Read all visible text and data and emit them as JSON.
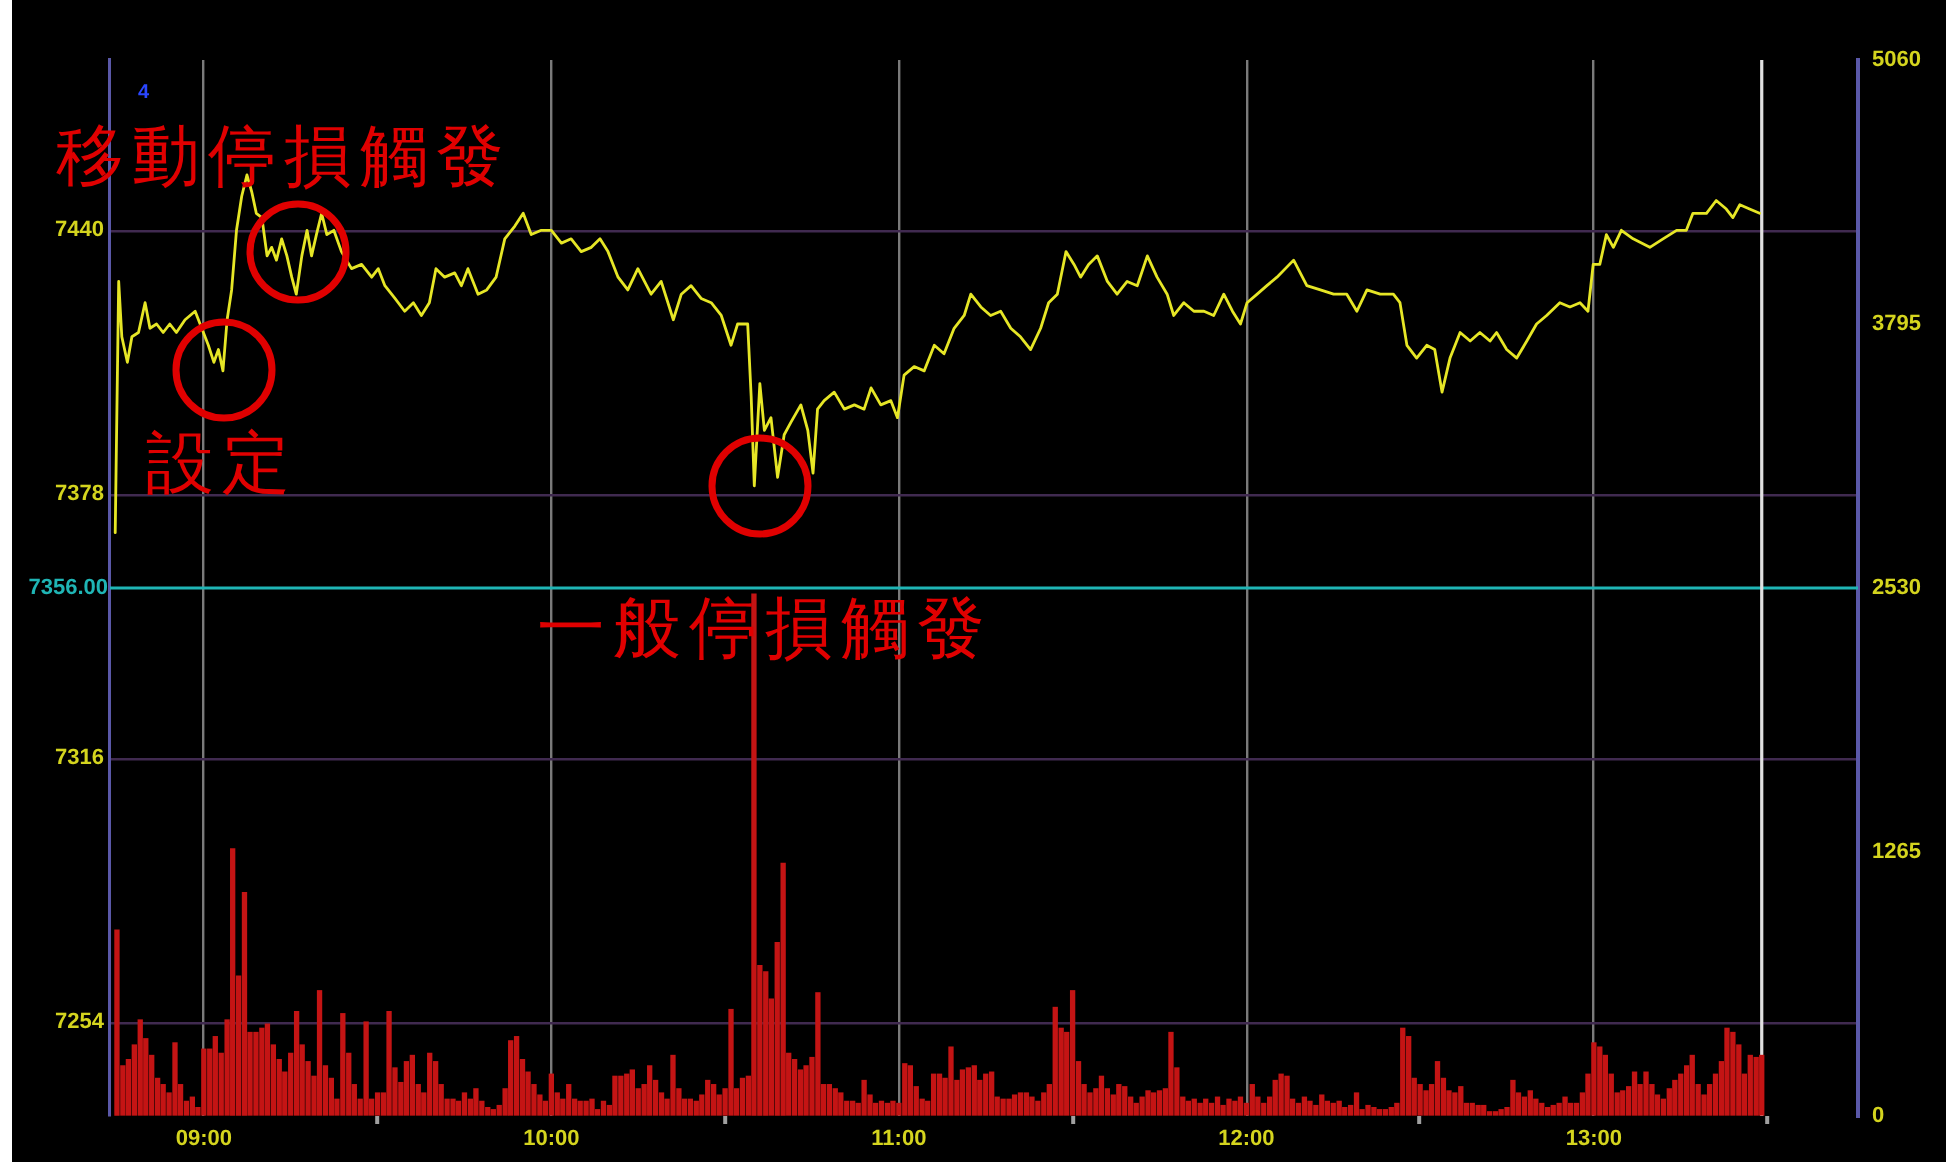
{
  "chart_data": {
    "type": "line",
    "xlim": [
      8.73,
      13.76
    ],
    "xticks": [
      {
        "value": 9,
        "label": "09:00"
      },
      {
        "value": 9.5,
        "label": null
      },
      {
        "value": 10,
        "label": "10:00"
      },
      {
        "value": 10.5,
        "label": null
      },
      {
        "value": 11,
        "label": "11:00"
      },
      {
        "value": 11.5,
        "label": null
      },
      {
        "value": 12,
        "label": "12:00"
      },
      {
        "value": 12.5,
        "label": null
      },
      {
        "value": 13,
        "label": "13:00"
      },
      {
        "value": 13.5,
        "label": null
      }
    ],
    "ylim": [
      7232,
      7480
    ],
    "yticks": [
      7254,
      7316,
      7378,
      7440
    ],
    "y2lim": [
      0,
      5060
    ],
    "y2ticks": [
      0,
      1265,
      2530,
      3795,
      5060
    ],
    "grid": true,
    "legend": false,
    "marker": "none",
    "line_style": "solid",
    "ref_lines": [
      {
        "axis": "y",
        "value": 7356,
        "label": "7356.00",
        "color": "#1fb5b5"
      },
      {
        "axis": "x",
        "value": 13.483,
        "color": "#e0e0e0"
      }
    ],
    "annotations": [
      "4",
      {
        "text": "移動停損觸發",
        "x": 9.27,
        "y": 7435
      },
      {
        "text": "設定",
        "x": 9.057,
        "y": 7407
      },
      {
        "text": "一般停損觸發",
        "x": 10.598,
        "y": 7380
      }
    ],
    "series": [
      {
        "color": "#e6e626",
        "x": [
          8.745,
          8.755,
          8.764,
          8.78,
          8.793,
          8.812,
          8.831,
          8.845,
          8.864,
          8.883,
          8.902,
          8.921,
          8.946,
          8.975,
          8.994,
          9.013,
          9.029,
          9.042,
          9.055,
          9.067,
          9.08,
          9.094,
          9.109,
          9.124,
          9.138,
          9.151,
          9.167,
          9.182,
          9.195,
          9.209,
          9.224,
          9.239,
          9.253,
          9.266,
          9.282,
          9.297,
          9.31,
          9.324,
          9.339,
          9.354,
          9.374,
          9.396,
          9.425,
          9.454,
          9.483,
          9.502,
          9.521,
          9.55,
          9.578,
          9.603,
          9.626,
          9.649,
          9.668,
          9.693,
          9.722,
          9.741,
          9.76,
          9.789,
          9.814,
          9.841,
          9.866,
          9.895,
          9.919,
          9.942,
          9.971,
          10,
          10.029,
          10.057,
          10.086,
          10.115,
          10.14,
          10.163,
          10.192,
          10.22,
          10.249,
          10.287,
          10.316,
          10.351,
          10.374,
          10.402,
          10.431,
          10.46,
          10.489,
          10.517,
          10.536,
          10.565,
          10.575,
          10.584,
          10.6,
          10.613,
          10.632,
          10.651,
          10.67,
          10.69,
          10.718,
          10.738,
          10.753,
          10.766,
          10.785,
          10.814,
          10.843,
          10.872,
          10.9,
          10.92,
          10.948,
          10.977,
          10.996,
          11.015,
          11.044,
          11.073,
          11.102,
          11.13,
          11.159,
          11.188,
          11.207,
          11.236,
          11.264,
          11.293,
          11.322,
          11.35,
          11.379,
          11.408,
          11.431,
          11.456,
          11.481,
          11.504,
          11.523,
          11.546,
          11.571,
          11.6,
          11.628,
          11.657,
          11.686,
          11.715,
          11.743,
          11.772,
          11.791,
          11.82,
          11.849,
          11.878,
          11.906,
          11.935,
          11.96,
          11.983,
          12.002,
          12.031,
          12.059,
          12.088,
          12.136,
          12.174,
          12.213,
          12.251,
          12.289,
          12.318,
          12.347,
          12.385,
          12.423,
          12.442,
          12.462,
          12.49,
          12.519,
          12.542,
          12.563,
          12.586,
          12.615,
          12.644,
          12.672,
          12.701,
          12.72,
          12.749,
          12.778,
          12.807,
          12.835,
          12.864,
          12.902,
          12.931,
          12.96,
          12.983,
          12.998,
          13.017,
          13.036,
          13.056,
          13.079,
          13.113,
          13.161,
          13.199,
          13.238,
          13.266,
          13.285,
          13.324,
          13.352,
          13.381,
          13.4,
          13.42,
          13.448,
          13.477
        ],
        "values": [
          7369,
          7428,
          7415,
          7409,
          7415,
          7416,
          7423,
          7417,
          7418,
          7416,
          7418,
          7416,
          7419,
          7421,
          7417,
          7413,
          7409,
          7412,
          7407,
          7419,
          7426,
          7440,
          7448,
          7453,
          7449,
          7444,
          7443,
          7434,
          7436,
          7433,
          7438,
          7434,
          7429,
          7425,
          7434,
          7440,
          7434,
          7439,
          7444,
          7439,
          7440,
          7435,
          7431,
          7432,
          7429,
          7431,
          7427,
          7424,
          7421,
          7423,
          7420,
          7423,
          7431,
          7429,
          7430,
          7427,
          7431,
          7425,
          7426,
          7429,
          7438,
          7441,
          7444,
          7439,
          7440,
          7440,
          7437,
          7438,
          7435,
          7436,
          7438,
          7435,
          7429,
          7426,
          7431,
          7425,
          7428,
          7419,
          7425,
          7427,
          7424,
          7423,
          7420,
          7413,
          7418,
          7418,
          7401,
          7380,
          7404,
          7393,
          7396,
          7382,
          7392,
          7395,
          7399,
          7393,
          7383,
          7398,
          7400,
          7402,
          7398,
          7399,
          7398,
          7403,
          7399,
          7400,
          7396,
          7406,
          7408,
          7407,
          7413,
          7411,
          7417,
          7420,
          7425,
          7422,
          7420,
          7421,
          7417,
          7415,
          7412,
          7417,
          7423,
          7425,
          7435,
          7432,
          7429,
          7432,
          7434,
          7428,
          7425,
          7428,
          7427,
          7434,
          7429,
          7425,
          7420,
          7423,
          7421,
          7421,
          7420,
          7425,
          7421,
          7418,
          7423,
          7425,
          7427,
          7429,
          7433,
          7427,
          7426,
          7425,
          7425,
          7421,
          7426,
          7425,
          7425,
          7423,
          7413,
          7410,
          7413,
          7412,
          7402,
          7410,
          7416,
          7414,
          7416,
          7414,
          7416,
          7412,
          7410,
          7414,
          7418,
          7420,
          7423,
          7422,
          7423,
          7421,
          7432,
          7432,
          7439,
          7436,
          7440,
          7438,
          7436,
          7438,
          7440,
          7440,
          7444,
          7444,
          7447,
          7445,
          7443,
          7446,
          7445,
          7444
        ]
      },
      {
        "type": "bar",
        "axis": "y2",
        "color": "#c41414",
        "x": [
          8.75,
          8.767,
          8.783,
          8.8,
          8.817,
          8.833,
          8.85,
          8.867,
          8.883,
          8.9,
          8.917,
          8.933,
          8.95,
          8.967,
          8.983,
          9,
          9.017,
          9.033,
          9.05,
          9.067,
          9.083,
          9.1,
          9.117,
          9.133,
          9.15,
          9.167,
          9.183,
          9.2,
          9.217,
          9.233,
          9.25,
          9.267,
          9.283,
          9.3,
          9.317,
          9.333,
          9.35,
          9.367,
          9.383,
          9.4,
          9.417,
          9.433,
          9.45,
          9.467,
          9.483,
          9.5,
          9.517,
          9.533,
          9.55,
          9.567,
          9.583,
          9.6,
          9.617,
          9.633,
          9.65,
          9.667,
          9.683,
          9.7,
          9.717,
          9.733,
          9.75,
          9.767,
          9.783,
          9.8,
          9.817,
          9.833,
          9.85,
          9.867,
          9.883,
          9.9,
          9.917,
          9.933,
          9.95,
          9.967,
          9.983,
          10,
          10.017,
          10.033,
          10.05,
          10.067,
          10.083,
          10.1,
          10.117,
          10.133,
          10.15,
          10.167,
          10.183,
          10.2,
          10.217,
          10.233,
          10.25,
          10.267,
          10.283,
          10.3,
          10.317,
          10.333,
          10.35,
          10.367,
          10.383,
          10.4,
          10.417,
          10.433,
          10.45,
          10.467,
          10.483,
          10.5,
          10.517,
          10.533,
          10.55,
          10.567,
          10.583,
          10.6,
          10.617,
          10.633,
          10.65,
          10.667,
          10.683,
          10.7,
          10.717,
          10.733,
          10.75,
          10.767,
          10.783,
          10.8,
          10.817,
          10.833,
          10.85,
          10.867,
          10.883,
          10.9,
          10.917,
          10.933,
          10.95,
          10.967,
          10.983,
          11,
          11.017,
          11.033,
          11.05,
          11.067,
          11.083,
          11.1,
          11.117,
          11.133,
          11.15,
          11.167,
          11.183,
          11.2,
          11.217,
          11.233,
          11.25,
          11.267,
          11.283,
          11.3,
          11.317,
          11.333,
          11.35,
          11.367,
          11.383,
          11.4,
          11.417,
          11.433,
          11.45,
          11.467,
          11.483,
          11.5,
          11.517,
          11.533,
          11.55,
          11.567,
          11.583,
          11.6,
          11.617,
          11.633,
          11.65,
          11.667,
          11.683,
          11.7,
          11.717,
          11.733,
          11.75,
          11.767,
          11.783,
          11.8,
          11.817,
          11.833,
          11.85,
          11.867,
          11.883,
          11.9,
          11.917,
          11.933,
          11.95,
          11.967,
          11.983,
          12,
          12.017,
          12.033,
          12.05,
          12.067,
          12.083,
          12.1,
          12.117,
          12.133,
          12.15,
          12.167,
          12.183,
          12.2,
          12.217,
          12.233,
          12.25,
          12.267,
          12.283,
          12.3,
          12.317,
          12.333,
          12.35,
          12.367,
          12.383,
          12.4,
          12.417,
          12.433,
          12.45,
          12.467,
          12.483,
          12.5,
          12.517,
          12.533,
          12.55,
          12.567,
          12.583,
          12.6,
          12.617,
          12.633,
          12.65,
          12.667,
          12.683,
          12.7,
          12.717,
          12.733,
          12.75,
          12.767,
          12.783,
          12.8,
          12.817,
          12.833,
          12.85,
          12.867,
          12.883,
          12.9,
          12.917,
          12.933,
          12.95,
          12.967,
          12.983,
          13,
          13.017,
          13.033,
          13.05,
          13.067,
          13.083,
          13.1,
          13.117,
          13.133,
          13.15,
          13.167,
          13.183,
          13.2,
          13.217,
          13.233,
          13.25,
          13.267,
          13.283,
          13.3,
          13.317,
          13.333,
          13.35,
          13.367,
          13.383,
          13.4,
          13.417,
          13.433,
          13.45,
          13.467,
          13.483
        ],
        "values": [
          890,
          240,
          270,
          340,
          460,
          370,
          290,
          180,
          150,
          110,
          350,
          150,
          70,
          90,
          40,
          320,
          320,
          380,
          300,
          460,
          1280,
          670,
          1070,
          400,
          400,
          420,
          440,
          340,
          270,
          210,
          300,
          500,
          340,
          260,
          190,
          600,
          240,
          180,
          80,
          490,
          300,
          150,
          80,
          450,
          80,
          110,
          110,
          500,
          230,
          160,
          260,
          290,
          150,
          110,
          300,
          260,
          150,
          80,
          80,
          70,
          110,
          80,
          130,
          70,
          40,
          30,
          50,
          130,
          360,
          380,
          270,
          210,
          150,
          100,
          70,
          200,
          110,
          80,
          150,
          80,
          70,
          70,
          80,
          30,
          70,
          50,
          190,
          190,
          200,
          220,
          130,
          150,
          240,
          170,
          110,
          80,
          290,
          130,
          80,
          80,
          70,
          100,
          170,
          150,
          100,
          130,
          510,
          130,
          180,
          190,
          2500,
          720,
          690,
          560,
          830,
          1210,
          300,
          270,
          220,
          240,
          280,
          590,
          150,
          150,
          130,
          110,
          70,
          70,
          60,
          170,
          100,
          60,
          70,
          60,
          70,
          60,
          250,
          240,
          140,
          80,
          70,
          200,
          200,
          180,
          330,
          170,
          220,
          230,
          240,
          170,
          200,
          210,
          90,
          80,
          80,
          100,
          110,
          110,
          90,
          70,
          110,
          150,
          520,
          420,
          400,
          600,
          260,
          150,
          110,
          130,
          190,
          130,
          100,
          150,
          140,
          90,
          60,
          90,
          120,
          110,
          120,
          130,
          400,
          230,
          90,
          70,
          80,
          60,
          80,
          60,
          90,
          50,
          80,
          70,
          90,
          60,
          150,
          90,
          60,
          90,
          170,
          200,
          190,
          80,
          60,
          90,
          70,
          50,
          100,
          70,
          60,
          70,
          40,
          50,
          110,
          30,
          50,
          40,
          30,
          30,
          40,
          60,
          420,
          380,
          180,
          150,
          120,
          150,
          260,
          180,
          120,
          110,
          140,
          60,
          60,
          50,
          50,
          20,
          20,
          30,
          40,
          170,
          110,
          90,
          120,
          80,
          60,
          40,
          50,
          60,
          90,
          60,
          60,
          110,
          200,
          350,
          330,
          290,
          200,
          110,
          120,
          140,
          210,
          150,
          210,
          150,
          100,
          80,
          130,
          170,
          200,
          240,
          290,
          150,
          100,
          150,
          200,
          260,
          420,
          400,
          340,
          200,
          290,
          280,
          290
        ]
      }
    ]
  }
}
